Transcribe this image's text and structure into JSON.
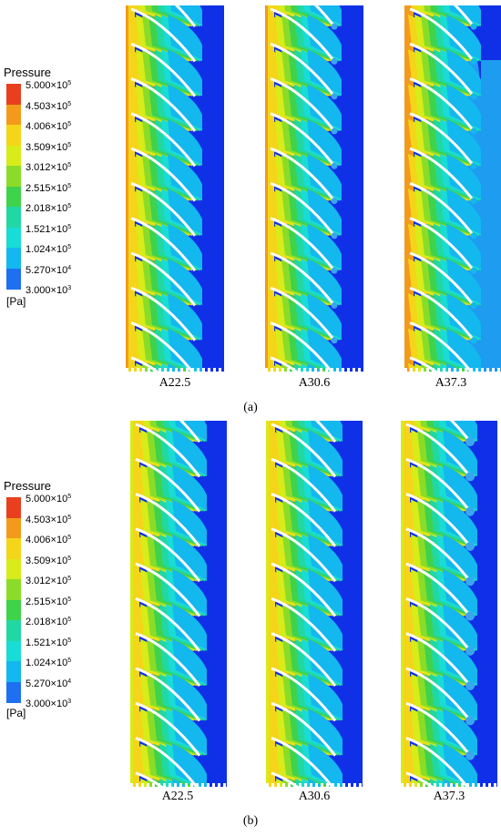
{
  "panels": [
    {
      "caption": "(a)",
      "legend": {
        "title": "Pressure",
        "unit": "[Pa]",
        "levels": [
          "5.000×10",
          "4.503×10",
          "4.006×10",
          "3.509×10",
          "3.012×10",
          "2.515×10",
          "2.018×10",
          "1.521×10",
          "1.024×10",
          "5.270×10",
          "3.000×10"
        ],
        "exponents": [
          "5",
          "5",
          "5",
          "5",
          "5",
          "5",
          "5",
          "5",
          "5",
          "4",
          "3"
        ],
        "colors": [
          "#e8401e",
          "#f39a1a",
          "#f5d51a",
          "#d7ec19",
          "#8bdc29",
          "#3fd24b",
          "#22d8a2",
          "#19dcd6",
          "#13b8ef",
          "#1e70f0",
          "#1030e8"
        ]
      },
      "cases": [
        {
          "label": "A22.5",
          "variant": "low"
        },
        {
          "label": "A30.6",
          "variant": "mid"
        },
        {
          "label": "A37.3",
          "variant": "high"
        }
      ]
    },
    {
      "caption": "(b)",
      "legend": {
        "title": "Pressure",
        "unit": "[Pa]",
        "levels": [
          "5.000×10",
          "4.503×10",
          "4.006×10",
          "3.509×10",
          "3.012×10",
          "2.515×10",
          "2.018×10",
          "1.521×10",
          "1.024×10",
          "5.270×10",
          "3.000×10"
        ],
        "exponents": [
          "5",
          "5",
          "5",
          "5",
          "5",
          "5",
          "5",
          "5",
          "5",
          "4",
          "3"
        ],
        "colors": [
          "#e8401e",
          "#f39a1a",
          "#f5d51a",
          "#d7ec19",
          "#8bdc29",
          "#3fd24b",
          "#22d8a2",
          "#19dcd6",
          "#13b8ef",
          "#1e70f0",
          "#1030e8"
        ]
      },
      "cases": [
        {
          "label": "A22.5",
          "variant": "b-low"
        },
        {
          "label": "A30.6",
          "variant": "b-mid"
        },
        {
          "label": "A37.3",
          "variant": "b-high"
        }
      ]
    }
  ]
}
